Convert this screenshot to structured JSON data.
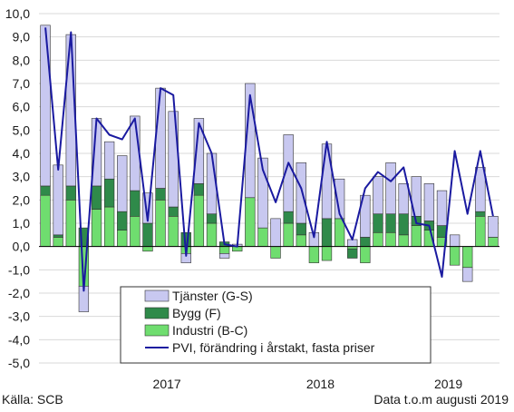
{
  "source_note": "Källa: SCB",
  "data_note": "Data t.o.m augusti 2019",
  "colors": {
    "tjanster": "#c8c8f0",
    "bygg": "#2f8a4a",
    "industri": "#6fdd6f",
    "pvi": "#1a1aa0",
    "bar_stroke": "#333333",
    "grid": "#d9d9d9"
  },
  "chart_data": {
    "type": "bar",
    "stacked": true,
    "title": "",
    "xlabel": "",
    "ylabel": "",
    "ylim": [
      -5,
      10
    ],
    "yticks": [
      -5,
      -4,
      -3,
      -2,
      -1,
      0,
      1,
      2,
      3,
      4,
      5,
      6,
      7,
      8,
      9,
      10
    ],
    "ytick_labels": [
      "-5,0",
      "-4,0",
      "-3,0",
      "-2,0",
      "-1,0",
      "0,0",
      "1,0",
      "2,0",
      "3,0",
      "4,0",
      "5,0",
      "6,0",
      "7,0",
      "8,0",
      "9,0",
      "10,0"
    ],
    "grid": true,
    "legend_position": "lower-center",
    "x_group_labels": [
      {
        "label": "2017",
        "months": "2017-01 to 2017-12"
      },
      {
        "label": "2018",
        "months": "2018-01 to 2018-12"
      },
      {
        "label": "2019",
        "months": "2019-01 to 2019-08"
      }
    ],
    "categories": [
      "2016-09",
      "2016-10",
      "2016-11",
      "2016-12",
      "2017-01",
      "2017-02",
      "2017-03",
      "2017-04",
      "2017-05",
      "2017-06",
      "2017-07",
      "2017-08",
      "2017-09",
      "2017-10",
      "2017-11",
      "2017-12",
      "2018-01",
      "2018-02",
      "2018-03",
      "2018-04",
      "2018-05",
      "2018-06",
      "2018-07",
      "2018-08",
      "2018-09",
      "2018-10",
      "2018-11",
      "2018-12",
      "2019-01",
      "2019-02",
      "2019-03",
      "2019-04",
      "2019-05",
      "2019-06",
      "2019-07",
      "2019-08"
    ],
    "series": [
      {
        "name": "Tjänster (G-S)",
        "kind": "bar",
        "values": [
          6.9,
          3.0,
          6.5,
          -1.1,
          2.9,
          1.6,
          2.4,
          3.2,
          1.3,
          4.3,
          4.1,
          -0.4,
          2.8,
          2.6,
          -0.2,
          0.1,
          4.9,
          3.0,
          1.2,
          3.3,
          2.6,
          0.6,
          3.2,
          1.7,
          0.3,
          1.8,
          1.6,
          2.2,
          1.3,
          1.7,
          1.6,
          1.5,
          0.5,
          -0.6,
          1.9,
          0.9
        ]
      },
      {
        "name": "Bygg (F)",
        "kind": "bar",
        "values": [
          0.4,
          0.1,
          0.6,
          0.8,
          1.0,
          1.2,
          0.8,
          1.1,
          1.0,
          0.5,
          0.4,
          0.6,
          0.5,
          0.4,
          0.2,
          0.0,
          0.0,
          0.0,
          0.0,
          0.5,
          0.5,
          0.0,
          1.2,
          0.0,
          -0.4,
          0.4,
          0.8,
          0.8,
          0.9,
          0.4,
          0.4,
          0.5,
          0.0,
          0.0,
          0.2,
          0.0
        ]
      },
      {
        "name": "Industri (B-C)",
        "kind": "bar",
        "values": [
          2.2,
          0.4,
          2.0,
          -1.7,
          1.6,
          1.7,
          0.7,
          1.3,
          -0.2,
          2.0,
          1.3,
          -0.3,
          2.2,
          1.0,
          -0.3,
          -0.2,
          2.1,
          0.8,
          -0.5,
          1.0,
          0.5,
          -0.7,
          -0.6,
          1.2,
          -0.1,
          -0.7,
          0.6,
          0.6,
          0.5,
          0.9,
          0.7,
          0.4,
          -0.8,
          -0.9,
          1.3,
          0.4
        ]
      },
      {
        "name": "PVI, förändring i årstakt, fasta priser",
        "kind": "line",
        "values": [
          9.4,
          3.3,
          9.2,
          -1.9,
          5.5,
          4.8,
          4.6,
          5.5,
          1.1,
          6.8,
          6.5,
          -0.4,
          5.3,
          4.0,
          0.1,
          0.0,
          6.5,
          3.3,
          1.9,
          3.6,
          2.5,
          0.4,
          4.5,
          1.4,
          0.3,
          2.5,
          3.2,
          2.8,
          3.4,
          1.0,
          0.9,
          -1.3,
          4.1,
          1.4,
          4.1,
          1.3
        ]
      }
    ],
    "legend_entries": [
      {
        "label": "Tjänster (G-S)",
        "kind": "box",
        "color_key": "tjanster"
      },
      {
        "label": "Bygg (F)",
        "kind": "box",
        "color_key": "bygg"
      },
      {
        "label": "Industri (B-C)",
        "kind": "box",
        "color_key": "industri"
      },
      {
        "label": "PVI, förändring i årstakt, fasta priser",
        "kind": "line",
        "color_key": "pvi"
      }
    ]
  }
}
